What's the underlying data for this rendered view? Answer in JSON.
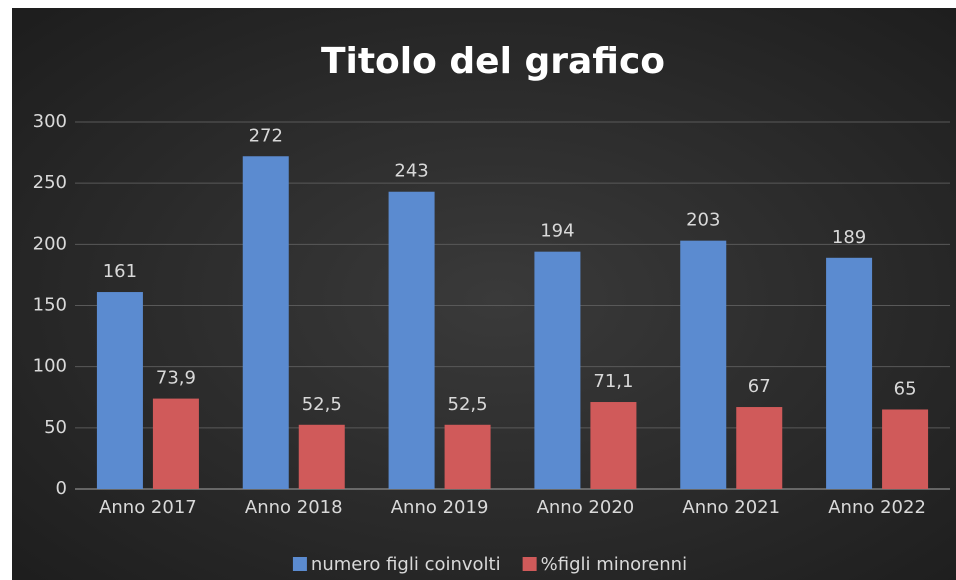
{
  "chart_data": {
    "type": "bar",
    "title": "Titolo del grafico",
    "categories": [
      "Anno 2017",
      "Anno 2018",
      "Anno 2019",
      "Anno 2020",
      "Anno 2021",
      "Anno 2022"
    ],
    "series": [
      {
        "name": "numero figli coinvolti",
        "color": "#5b8bd0",
        "values": [
          161,
          272,
          243,
          194,
          203,
          189
        ]
      },
      {
        "name": "%figli minorenni",
        "color": "#d05a5a",
        "values": [
          73.9,
          52.5,
          52.5,
          71.1,
          67,
          65
        ],
        "value_labels": [
          "73,9",
          "52,5",
          "52,5",
          "71,1",
          "67",
          "65"
        ]
      }
    ],
    "ylim": [
      0,
      300
    ],
    "yticks": [
      0,
      50,
      100,
      150,
      200,
      250,
      300
    ],
    "grid": true,
    "legend": "bottom"
  }
}
